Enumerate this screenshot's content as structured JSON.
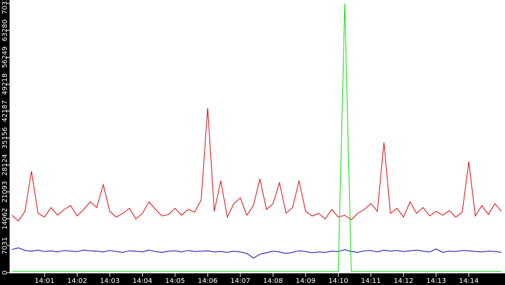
{
  "chart_data": {
    "type": "line",
    "x": [
      0,
      0.2,
      0.4,
      0.6,
      0.8,
      1,
      1.2,
      1.4,
      1.6,
      1.8,
      2,
      2.2,
      2.4,
      2.6,
      2.8,
      3,
      3.2,
      3.4,
      3.6,
      3.8,
      4,
      4.2,
      4.4,
      4.6,
      4.8,
      5,
      5.2,
      5.4,
      5.6,
      5.8,
      6,
      6.2,
      6.4,
      6.6,
      6.8,
      7,
      7.2,
      7.4,
      7.6,
      7.8,
      8,
      8.2,
      8.4,
      8.6,
      8.8,
      9,
      9.2,
      9.4,
      9.6,
      9.8,
      10,
      10.2,
      10.4,
      10.6,
      10.8,
      11,
      11.2,
      11.4,
      11.6,
      11.8,
      12,
      12.2,
      12.4,
      12.6,
      12.8,
      13,
      13.2,
      13.4,
      13.6,
      13.8,
      14,
      14.2,
      14.4,
      14.6,
      14.8,
      15
    ],
    "series": [
      {
        "color": "#e00000",
        "values": [
          15000,
          13500,
          16000,
          26500,
          15500,
          14500,
          17000,
          15000,
          16500,
          17500,
          14800,
          16500,
          18500,
          17000,
          23000,
          16000,
          14500,
          15500,
          16800,
          14000,
          15500,
          18500,
          16500,
          14800,
          15200,
          16800,
          15000,
          16500,
          15800,
          19000,
          43000,
          16000,
          24000,
          14500,
          18000,
          19500,
          15000,
          17500,
          24500,
          16500,
          18000,
          23500,
          15500,
          17000,
          24000,
          16000,
          14800,
          15500,
          14000,
          16500,
          14500,
          15000,
          13800,
          15500,
          16500,
          18000,
          16000,
          34000,
          15500,
          16800,
          14500,
          18500,
          15500,
          17000,
          14800,
          16000,
          15000,
          16200,
          14500,
          15800,
          29000,
          14800,
          17500,
          15200,
          18000,
          16000
        ]
      },
      {
        "color": "#0000b0",
        "values": [
          6000,
          6500,
          5800,
          5600,
          5900,
          5500,
          5700,
          5400,
          5800,
          5600,
          5500,
          5900,
          5700,
          5600,
          5400,
          5800,
          5500,
          5300,
          5700,
          5600,
          5400,
          5900,
          5500,
          5300,
          5600,
          5700,
          5400,
          5800,
          5500,
          5600,
          5700,
          5400,
          5500,
          5300,
          5600,
          5400,
          5000,
          3800,
          4800,
          5200,
          5600,
          5400,
          5000,
          5300,
          5700,
          5500,
          5200,
          5400,
          5300,
          5600,
          5500,
          6000,
          5500,
          5300,
          5700,
          5800,
          5400,
          5900,
          5600,
          5800,
          5500,
          5700,
          5900,
          5600,
          5400,
          6200,
          5300,
          5600,
          5500,
          5800,
          5700,
          5500,
          5400,
          5600,
          5500,
          5300
        ]
      },
      {
        "color": "#00e000",
        "values": [
          300,
          300,
          300,
          300,
          300,
          300,
          300,
          300,
          300,
          300,
          300,
          300,
          300,
          300,
          300,
          300,
          300,
          300,
          300,
          300,
          300,
          300,
          300,
          300,
          300,
          300,
          300,
          300,
          300,
          300,
          300,
          300,
          300,
          300,
          300,
          300,
          300,
          300,
          300,
          300,
          300,
          300,
          300,
          300,
          300,
          300,
          300,
          300,
          300,
          300,
          300,
          70312,
          300,
          300,
          300,
          300,
          300,
          300,
          300,
          300,
          300,
          300,
          300,
          300,
          300,
          300,
          300,
          300,
          300,
          300,
          300,
          300,
          300,
          300,
          300,
          300
        ]
      }
    ],
    "xlim": [
      -0.07,
      15.11
    ],
    "xticks": [
      {
        "value": 1,
        "label": "14:01"
      },
      {
        "value": 2,
        "label": "14:02"
      },
      {
        "value": 3,
        "label": "14:03"
      },
      {
        "value": 4,
        "label": "14:04"
      },
      {
        "value": 5,
        "label": "14:05"
      },
      {
        "value": 6,
        "label": "14:06"
      },
      {
        "value": 7,
        "label": "14:07"
      },
      {
        "value": 8,
        "label": "14:08"
      },
      {
        "value": 9,
        "label": "14:09"
      },
      {
        "value": 10,
        "label": "14:10"
      },
      {
        "value": 11,
        "label": "14:11"
      },
      {
        "value": 12,
        "label": "14:12"
      },
      {
        "value": 13,
        "label": "14:13"
      },
      {
        "value": 14,
        "label": "14:14"
      }
    ],
    "ylim": [
      0,
      70312
    ],
    "yticks": [
      0,
      7031,
      14062,
      21093,
      28124,
      35156,
      42187,
      49218,
      56249,
      63280,
      70312
    ]
  }
}
